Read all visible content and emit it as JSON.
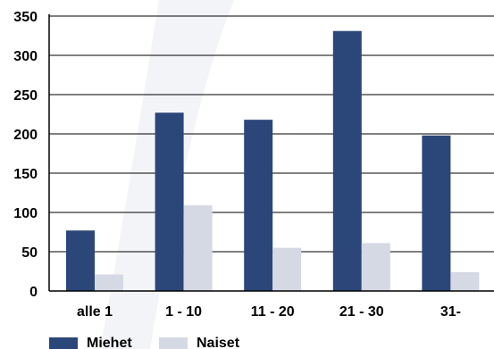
{
  "chart_data": {
    "type": "bar",
    "categories": [
      "alle 1",
      "1 - 10",
      "11 - 20",
      "21 - 30",
      "31-"
    ],
    "series": [
      {
        "name": "Miehet",
        "values": [
          77,
          227,
          218,
          331,
          198
        ],
        "color": "#2b4678"
      },
      {
        "name": "Naiset",
        "values": [
          21,
          109,
          55,
          61,
          24
        ],
        "color": "#d5d9e3"
      }
    ],
    "ylim": [
      0,
      350
    ],
    "yticks": [
      0,
      50,
      100,
      150,
      200,
      250,
      300,
      350
    ],
    "grid": true,
    "legend_position": "bottom-left",
    "title": "",
    "xlabel": "",
    "ylabel": ""
  }
}
